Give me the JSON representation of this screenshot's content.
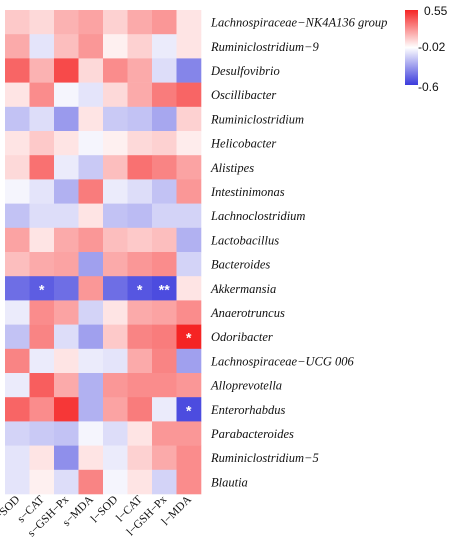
{
  "chart_data": {
    "type": "heatmap",
    "rows": [
      "Lachnospiraceae−NK4A136 group",
      "Ruminiclostridium−9",
      "Desulfovibrio",
      "Oscillibacter",
      "Ruminiclostridium",
      "Helicobacter",
      "Alistipes",
      "Intestinimonas",
      "Lachnoclostridium",
      "Lactobacillus",
      "Bacteroides",
      "Akkermansia",
      "Anaerotruncus",
      "Odoribacter",
      "Lachnospiraceae−UCG 006",
      "Alloprevotella",
      "Enterorhabdus",
      "Parabacteroides",
      "Ruminiclostridium−5",
      "Blautia"
    ],
    "columns": [
      "s−SOD",
      "s−CAT",
      "s−GSH−Px",
      "s−MDA",
      "l−SOD",
      "l−CAT",
      "l−GSH−Px",
      "l−MDA"
    ],
    "values": [
      [
        0.12,
        0.08,
        0.18,
        0.22,
        0.1,
        0.2,
        0.25,
        0.05
      ],
      [
        0.2,
        -0.1,
        0.15,
        0.25,
        0.02,
        0.1,
        -0.08,
        0.05
      ],
      [
        0.38,
        0.18,
        0.45,
        0.08,
        0.28,
        0.2,
        -0.12,
        -0.38
      ],
      [
        0.05,
        0.28,
        -0.05,
        -0.1,
        0.08,
        0.2,
        0.32,
        0.38
      ],
      [
        -0.2,
        -0.12,
        -0.32,
        0.05,
        -0.18,
        -0.2,
        -0.28,
        0.1
      ],
      [
        0.05,
        0.12,
        0.05,
        -0.05,
        0.02,
        0.08,
        0.1,
        0.03
      ],
      [
        0.08,
        0.35,
        -0.08,
        -0.18,
        0.15,
        0.35,
        0.3,
        0.22
      ],
      [
        -0.05,
        -0.1,
        -0.25,
        0.32,
        -0.08,
        -0.12,
        -0.2,
        0.25
      ],
      [
        -0.2,
        -0.12,
        -0.12,
        0.05,
        -0.2,
        -0.22,
        -0.15,
        -0.15
      ],
      [
        0.22,
        0.05,
        0.2,
        0.25,
        0.15,
        0.12,
        0.15,
        -0.25
      ],
      [
        0.15,
        0.2,
        0.22,
        -0.3,
        0.2,
        0.25,
        0.28,
        -0.15
      ],
      [
        -0.45,
        -0.5,
        -0.45,
        0.25,
        -0.45,
        -0.52,
        -0.55,
        0.05
      ],
      [
        -0.08,
        0.28,
        0.22,
        -0.15,
        0.05,
        0.2,
        0.22,
        0.28
      ],
      [
        -0.2,
        0.3,
        -0.12,
        -0.3,
        0.12,
        0.3,
        0.32,
        0.55
      ],
      [
        0.3,
        -0.08,
        0.05,
        -0.08,
        -0.1,
        0.2,
        0.3,
        -0.3
      ],
      [
        -0.08,
        0.4,
        0.2,
        -0.25,
        0.25,
        0.28,
        0.28,
        0.25
      ],
      [
        0.38,
        0.28,
        0.5,
        -0.25,
        0.22,
        0.32,
        -0.08,
        -0.55
      ],
      [
        -0.15,
        -0.18,
        -0.2,
        -0.05,
        -0.12,
        0.05,
        0.25,
        0.25
      ],
      [
        -0.1,
        0.05,
        -0.35,
        0.05,
        -0.08,
        0.1,
        0.2,
        0.28
      ],
      [
        -0.1,
        0.02,
        -0.12,
        0.3,
        -0.05,
        0.05,
        -0.15,
        0.28
      ]
    ],
    "annotations": [
      {
        "row": 11,
        "col": 1,
        "text": "*"
      },
      {
        "row": 11,
        "col": 5,
        "text": "*"
      },
      {
        "row": 11,
        "col": 6,
        "text": "**"
      },
      {
        "row": 13,
        "col": 7,
        "text": "*"
      },
      {
        "row": 16,
        "col": 7,
        "text": "*"
      }
    ],
    "color_scale": {
      "min": -0.6,
      "mid": -0.02,
      "max": 0.55,
      "low_color": "#3b3bdc",
      "mid_color": "#ffffff",
      "high_color": "#f52424",
      "ticks": [
        "0.55",
        "-0.02",
        "-0.6"
      ]
    },
    "legend_position": "top-right"
  }
}
